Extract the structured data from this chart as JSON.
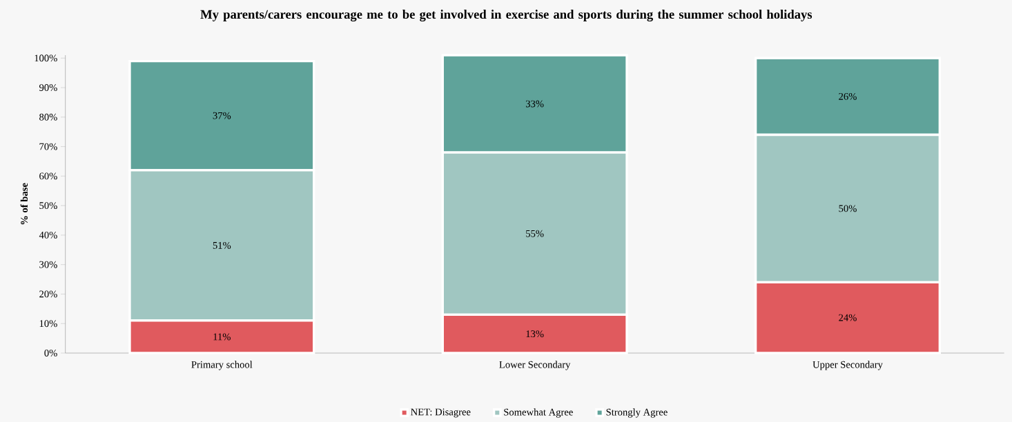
{
  "chart_data": {
    "type": "bar",
    "stacked": true,
    "title": "My parents/carers encourage me to be get involved in exercise and sports during the summer school holidays",
    "ylabel": "% of base",
    "categories": [
      "Primary school",
      "Lower Secondary",
      "Upper Secondary"
    ],
    "series": [
      {
        "name": "NET: Disagree",
        "color": "#e05a5e",
        "values": [
          11,
          13,
          24
        ],
        "value_labels": [
          "11%",
          "13%",
          "24%"
        ]
      },
      {
        "name": "Somewhat Agree",
        "color": "#a0c6c1",
        "values": [
          51,
          55,
          50
        ],
        "value_labels": [
          "51%",
          "55%",
          "50%"
        ]
      },
      {
        "name": "Strongly Agree",
        "color": "#5fa39a",
        "values": [
          37,
          33,
          26
        ],
        "value_labels": [
          "37%",
          "33%",
          "26%"
        ]
      }
    ],
    "ylim": [
      0,
      101
    ],
    "yticks": [
      {
        "value": 0,
        "label": "0%"
      },
      {
        "value": 10,
        "label": "10%"
      },
      {
        "value": 20,
        "label": "20%"
      },
      {
        "value": 30,
        "label": "30%"
      },
      {
        "value": 40,
        "label": "40%"
      },
      {
        "value": 50,
        "label": "50%"
      },
      {
        "value": 60,
        "label": "60%"
      },
      {
        "value": 70,
        "label": "70%"
      },
      {
        "value": 80,
        "label": "80%"
      },
      {
        "value": 90,
        "label": "90%"
      },
      {
        "value": 100,
        "label": "100%"
      }
    ],
    "legend": "bottom",
    "grid": false
  }
}
